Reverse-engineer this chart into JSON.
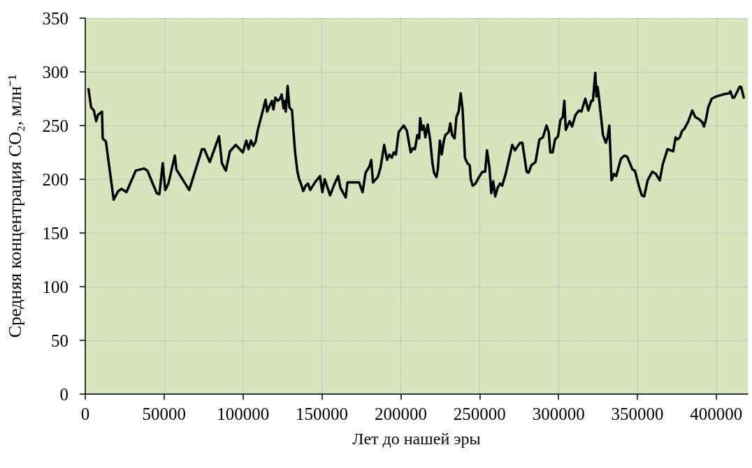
{
  "chart_data": {
    "type": "line",
    "xlabel": "Лет до нашей эры",
    "ylabel": "Средняя концентрация CO₂, млн⁻¹",
    "x": [
      2080,
      3700,
      5450,
      6950,
      8100,
      10600,
      11060,
      13100,
      18000,
      20900,
      23100,
      26100,
      32000,
      37200,
      39400,
      45300,
      47000,
      49100,
      50700,
      52700,
      56800,
      57800,
      65900,
      74000,
      75500,
      78900,
      84800,
      86600,
      89100,
      91700,
      95400,
      99900,
      102100,
      103500,
      105000,
      106500,
      108000,
      109400,
      111700,
      113100,
      114300,
      115300,
      116800,
      118300,
      119300,
      120500,
      122000,
      123500,
      124500,
      125700,
      126400,
      127100,
      128300,
      129400,
      131100,
      132000,
      133100,
      134500,
      135600,
      136700,
      138200,
      139700,
      141200,
      142600,
      145600,
      148800,
      150300,
      151800,
      155200,
      158100,
      160300,
      161800,
      165100,
      166200,
      173600,
      175800,
      177700,
      180200,
      181300,
      182400,
      185400,
      187200,
      189500,
      191300,
      192800,
      194300,
      195500,
      196900,
      198700,
      201900,
      203900,
      204600,
      206300,
      207800,
      209000,
      210500,
      211700,
      212300,
      213400,
      214500,
      215600,
      217100,
      218600,
      220100,
      221100,
      222600,
      223500,
      224800,
      226000,
      227200,
      228200,
      230400,
      231400,
      232600,
      234100,
      235300,
      236700,
      238000,
      239200,
      240700,
      242200,
      243700,
      244400,
      245600,
      247400,
      249600,
      251800,
      253500,
      254700,
      256200,
      257400,
      258600,
      259900,
      261400,
      262900,
      264300,
      266500,
      270700,
      272400,
      274200,
      275700,
      277100,
      279800,
      281000,
      282800,
      285400,
      287900,
      290100,
      292400,
      293800,
      294800,
      296300,
      297800,
      299700,
      301200,
      302700,
      303700,
      304600,
      307100,
      308600,
      310800,
      313000,
      314500,
      317000,
      318900,
      320800,
      321800,
      322600,
      323300,
      324100,
      324800,
      325500,
      328200,
      330000,
      331100,
      332200,
      333600,
      335100,
      336600,
      339500,
      341800,
      343500,
      346900,
      348400,
      350900,
      352800,
      354300,
      356500,
      359400,
      361700,
      364200,
      366100,
      369100,
      370900,
      372700,
      374200,
      375400,
      376900,
      378300,
      379800,
      382300,
      384800,
      386700,
      389000,
      391200,
      392200,
      393400,
      394900,
      397100,
      400000,
      404400,
      408100,
      409000,
      410300,
      411400,
      414800,
      415800,
      417400
    ],
    "series": [
      {
        "color": "#000000",
        "values": [
          284,
          267,
          264,
          254,
          260,
          263,
          238,
          235,
          181,
          189,
          191,
          188,
          208,
          210,
          208,
          187,
          186,
          215,
          190,
          196,
          222,
          209,
          190,
          228,
          228,
          216,
          240,
          215,
          208,
          226,
          232,
          225,
          236,
          228,
          236,
          231,
          235,
          246,
          259,
          267,
          274,
          263,
          268,
          273,
          265,
          276,
          273,
          275,
          279,
          266,
          273,
          263,
          287,
          267,
          264,
          244,
          224,
          207,
          200,
          196,
          189,
          194,
          196,
          190,
          197,
          203,
          188,
          200,
          185,
          196,
          203,
          192,
          183,
          197,
          197,
          188,
          206,
          212,
          218,
          197,
          202,
          211,
          232,
          218,
          223,
          220,
          225,
          223,
          244,
          250,
          245,
          239,
          225,
          229,
          228,
          241,
          238,
          257,
          246,
          250,
          239,
          251,
          237,
          215,
          206,
          202,
          209,
          236,
          223,
          235,
          241,
          244,
          252,
          241,
          238,
          258,
          263,
          280,
          265,
          220,
          215,
          213,
          200,
          194,
          196,
          202,
          207,
          207,
          227,
          211,
          187,
          198,
          184,
          192,
          196,
          194,
          205,
          232,
          227,
          231,
          234,
          234,
          207,
          206,
          213,
          216,
          237,
          239,
          250,
          244,
          225,
          225,
          237,
          240,
          255,
          258,
          273,
          246,
          254,
          249,
          260,
          264,
          263,
          275,
          264,
          273,
          273,
          287,
          299,
          277,
          286,
          278,
          241,
          234,
          239,
          250,
          199,
          205,
          203,
          219,
          222,
          221,
          209,
          208,
          194,
          185,
          184,
          199,
          207,
          205,
          199,
          214,
          228,
          227,
          226,
          239,
          237,
          239,
          245,
          247,
          254,
          264,
          258,
          256,
          253,
          249,
          255,
          267,
          275,
          277,
          279,
          280,
          282,
          276,
          276,
          286,
          286,
          276
        ]
      }
    ],
    "xlim": [
      0,
      420000
    ],
    "xticks": [
      0,
      50000,
      100000,
      150000,
      200000,
      250000,
      300000,
      350000,
      400000
    ],
    "ylim": [
      0,
      350
    ],
    "yticks": [
      0,
      50,
      100,
      150,
      200,
      250,
      300,
      350
    ],
    "grid": true,
    "line_style": "solid"
  }
}
